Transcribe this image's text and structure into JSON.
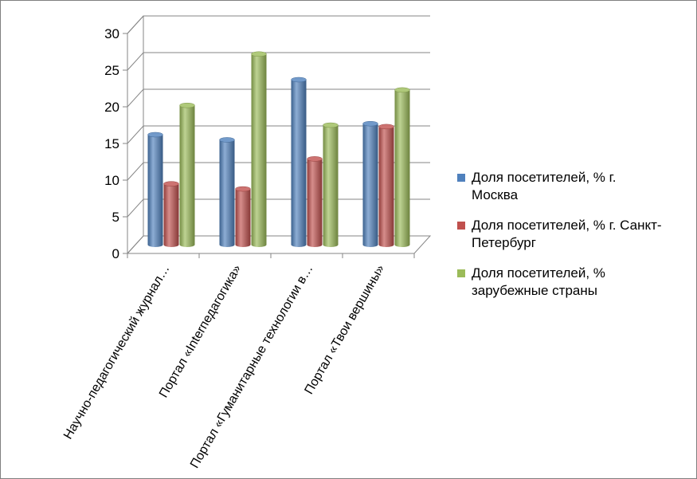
{
  "chart_data": {
    "type": "bar",
    "categories": [
      "Научно-педагогический журнал…",
      "Портал «Interпедагогика»",
      "Портал «Гуманитарные технологии в…",
      "Портал «Твои вершины»"
    ],
    "series": [
      {
        "name": "Доля посетителей, % г. Москва",
        "values": [
          15,
          14.3,
          22.5,
          16.5
        ],
        "color": "#4f81bd"
      },
      {
        "name": "Доля посетителей, % г. Санкт-Петербург",
        "values": [
          8.3,
          7.6,
          11.7,
          16.1
        ],
        "color": "#c0504d"
      },
      {
        "name": "Доля посетителей, % зарубежные страны",
        "values": [
          19,
          26,
          16.3,
          21.1
        ],
        "color": "#9bbb59"
      }
    ],
    "yticks": [
      "0",
      "5",
      "10",
      "15",
      "20",
      "25",
      "30"
    ],
    "ylim": [
      0,
      30
    ],
    "grid": true,
    "legend_position": "right"
  },
  "legend": {
    "items": [
      [
        "Доля посетителей, % г.",
        "Москва"
      ],
      [
        "Доля посетителей, % г. Санкт-",
        "Петербург"
      ],
      [
        "Доля посетителей, %",
        "зарубежные страны"
      ]
    ]
  }
}
